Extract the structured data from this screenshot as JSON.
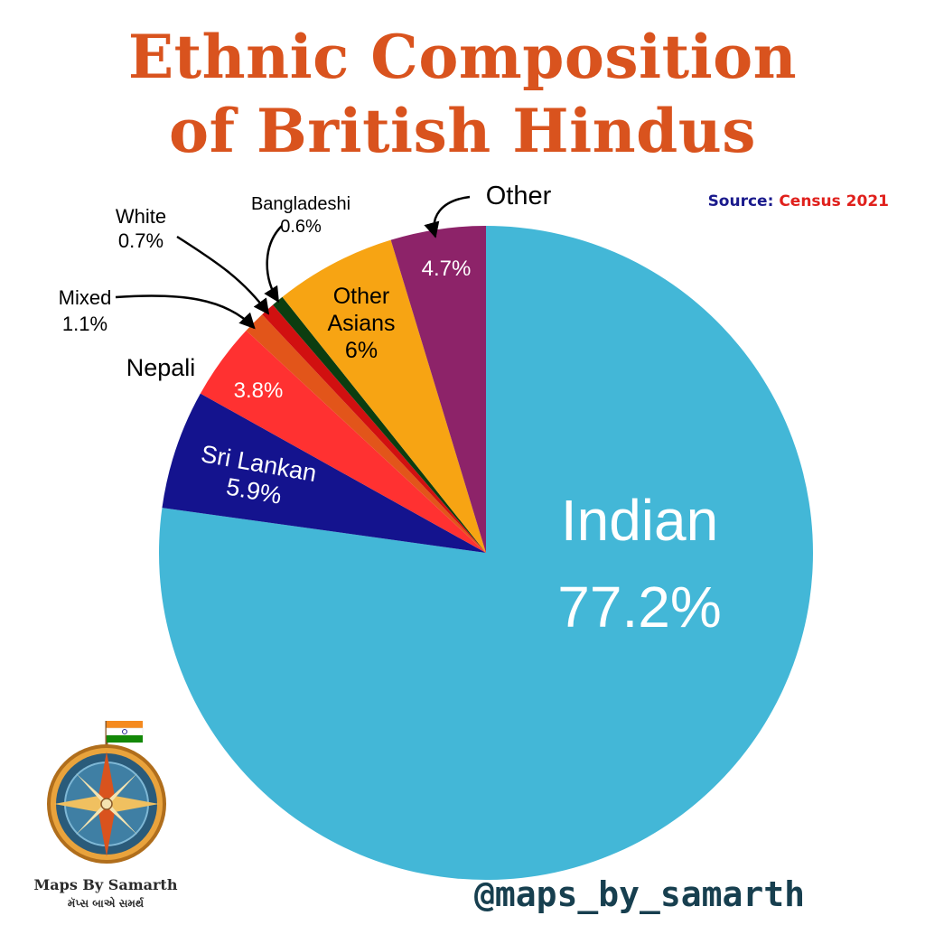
{
  "header": {
    "title_line1": "Ethnic Composition",
    "title_line2": "of British Hindus",
    "source_label": "Source:",
    "source_value": "Census 2021"
  },
  "footer": {
    "handle": "@maps_by_samarth",
    "logo_name": "Maps By Samarth",
    "logo_subtitle": "મૅપ્સ બાએ સમર્થ"
  },
  "icons": {
    "logo": "compass-rose-with-indian-flag"
  },
  "chart_data": {
    "type": "pie",
    "title": "Ethnic Composition of British Hindus",
    "start_angle": "12 o'clock",
    "direction": "clockwise",
    "slices": [
      {
        "name": "Indian",
        "value": 77.2,
        "label": "77.2%",
        "color": "#43b7d7"
      },
      {
        "name": "Sri Lankan",
        "value": 5.9,
        "label": "5.9%",
        "color": "#14138e"
      },
      {
        "name": "Nepali",
        "value": 3.8,
        "label": "3.8%",
        "color": "#ff3131"
      },
      {
        "name": "Mixed",
        "value": 1.1,
        "label": "1.1%",
        "color": "#e2551a"
      },
      {
        "name": "White",
        "value": 0.7,
        "label": "0.7%",
        "color": "#d11010"
      },
      {
        "name": "Bangladeshi",
        "value": 0.6,
        "label": "0.6%",
        "color": "#0c3d10"
      },
      {
        "name": "Other Asians",
        "value": 6,
        "label": "6%",
        "color": "#f7a413"
      },
      {
        "name": "Other",
        "value": 4.7,
        "label": "4.7%",
        "color": "#8d2369"
      }
    ]
  }
}
